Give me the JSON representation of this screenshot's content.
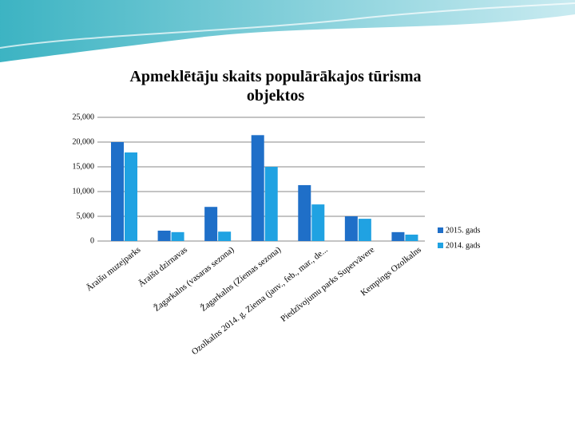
{
  "chart_data": {
    "type": "bar",
    "title": "Apmeklētāju skaits populārākajos tūrisma objektos",
    "categories": [
      "Āraišu muzejparks",
      "Āraišu dzirnavas",
      "Žagarkalns (vasaras sezona)",
      "Žagarkalns (Ziemas sezona)",
      "Ozolkalns 2014. g. Ziema (janv., feb., mar., de...",
      "Piedzīvojumu parks Supervāvere",
      "Kempings Ozolkalns"
    ],
    "series": [
      {
        "name": "2015. gads",
        "color": "#1f6fc8",
        "values": [
          20000,
          2100,
          6900,
          21400,
          11300,
          5000,
          1800
        ]
      },
      {
        "name": "2014. gads",
        "color": "#20a2e2",
        "values": [
          17900,
          1800,
          1900,
          15000,
          7400,
          4500,
          1300
        ]
      }
    ],
    "ylim": [
      0,
      25000
    ],
    "yticks": [
      0,
      {
        "value": 5000,
        "label": "5,000"
      },
      {
        "value": 10000,
        "label": "10,000"
      },
      {
        "value": 15000,
        "label": "15,000"
      },
      {
        "value": 20000,
        "label": "20,000"
      },
      {
        "value": 25000,
        "label": "25,000"
      }
    ],
    "grid": true,
    "legend": "right"
  }
}
